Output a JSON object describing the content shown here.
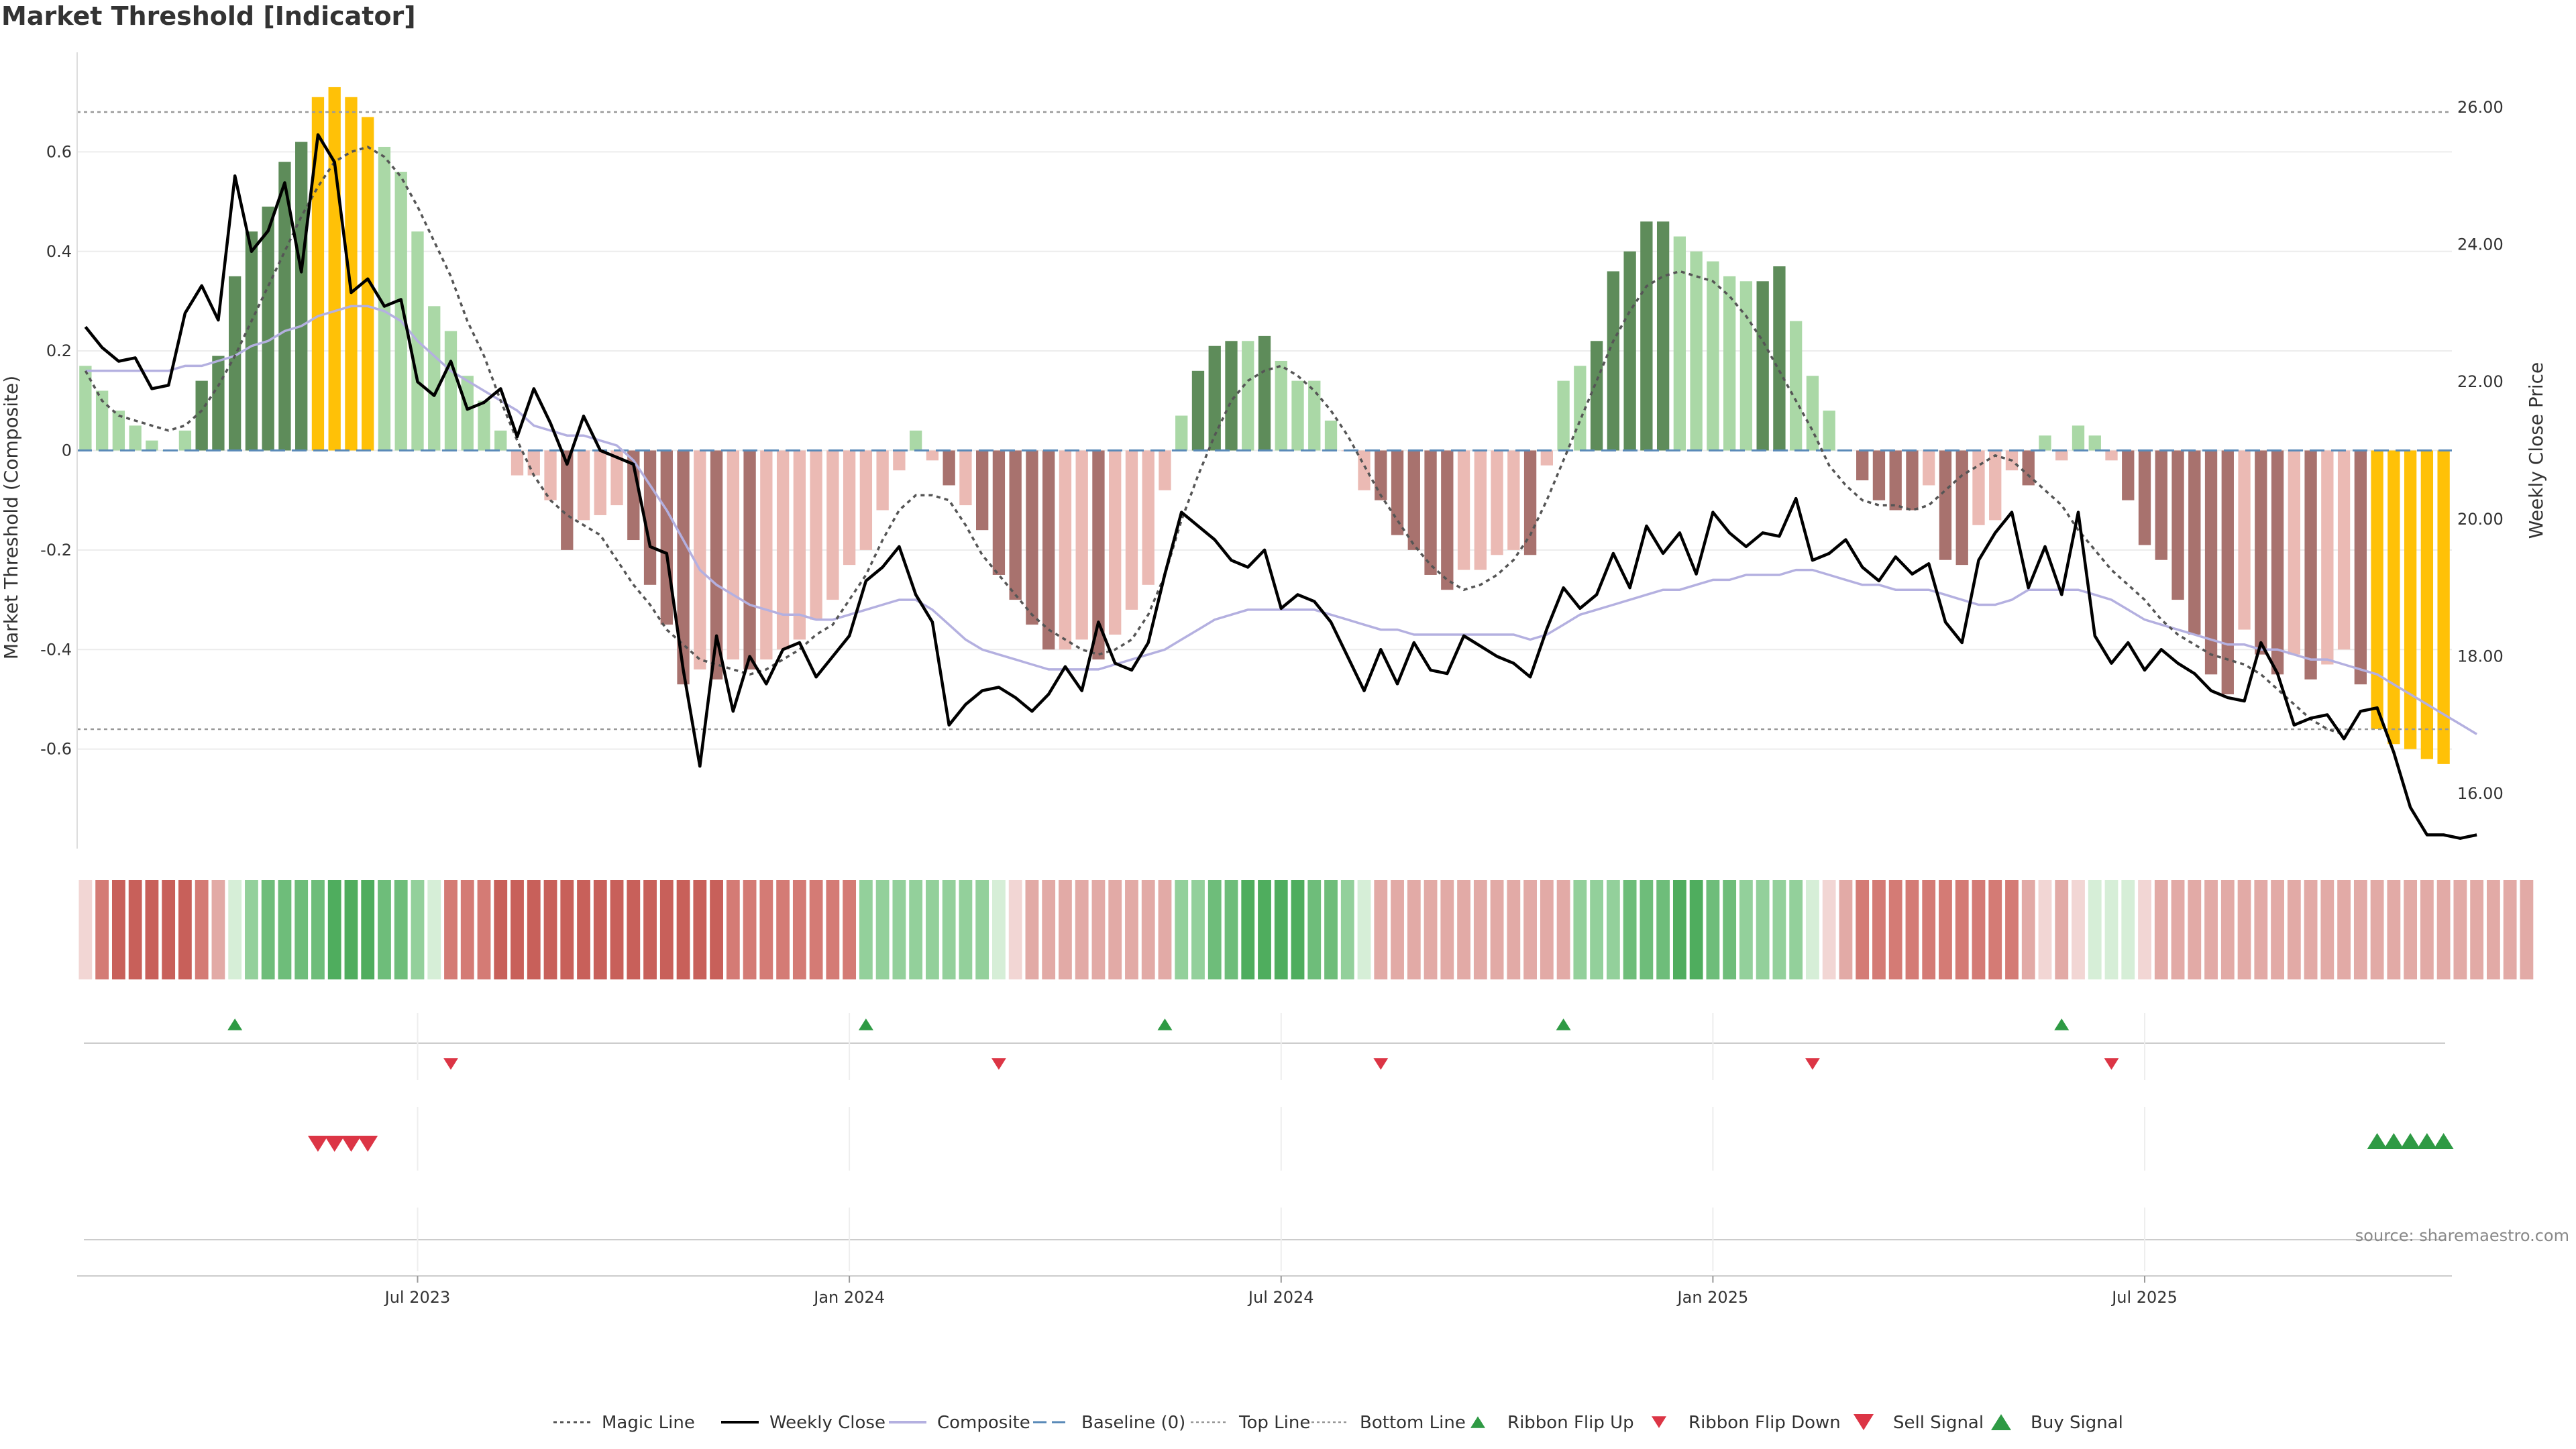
{
  "page": {
    "title": "Market Threshold [Indicator]"
  },
  "colors": {
    "strong_pos": "#5e8c5a",
    "weak_pos": "#aad8a6",
    "strong_neg": "#a8726e",
    "weak_neg": "#ebbab4",
    "extreme": "#ffc107",
    "close": "#000000",
    "composite": "#b4b0e0",
    "magic": "#555555",
    "baseline": "#5a8ab8",
    "ref": "#999999",
    "buy": "#2e9a44",
    "sell": "#dc3545"
  },
  "chart_data": {
    "type": "bar",
    "title": "Market Threshold [Indicator]",
    "ylabel_left": "Market Threshold (Composite)",
    "ylabel_right": "Weekly Close Price",
    "ylim_left": [
      -0.8,
      0.8
    ],
    "ylim_right": [
      15.2,
      26.8
    ],
    "left_ticks": [
      "-0.6",
      "-0.4",
      "-0.2",
      "0",
      "0.2",
      "0.4",
      "0.6"
    ],
    "right_ticks": [
      "16.00",
      "18.00",
      "20.00",
      "22.00",
      "24.00",
      "26.00"
    ],
    "x_ticks": [
      {
        "label": "Jul 2023",
        "week": 20
      },
      {
        "label": "Jan 2024",
        "week": 46
      },
      {
        "label": "Jul 2024",
        "week": 72
      },
      {
        "label": "Jan 2025",
        "week": 98
      },
      {
        "label": "Jul 2025",
        "week": 124
      }
    ],
    "top_line": 0.68,
    "bottom_line": -0.56,
    "composite_bars": [
      0.17,
      0.12,
      0.08,
      0.05,
      0.02,
      0,
      0.04,
      0.14,
      0.19,
      0.35,
      0.44,
      0.49,
      0.58,
      0.62,
      0.71,
      0.73,
      0.71,
      0.67,
      0.61,
      0.56,
      0.44,
      0.29,
      0.24,
      0.15,
      0.1,
      0.04,
      -0.05,
      -0.05,
      -0.1,
      -0.2,
      -0.14,
      -0.13,
      -0.11,
      -0.18,
      -0.27,
      -0.35,
      -0.47,
      -0.44,
      -0.46,
      -0.42,
      -0.44,
      -0.42,
      -0.4,
      -0.38,
      -0.34,
      -0.3,
      -0.23,
      -0.2,
      -0.12,
      -0.04,
      0.04,
      -0.02,
      -0.07,
      -0.11,
      -0.16,
      -0.25,
      -0.3,
      -0.35,
      -0.4,
      -0.4,
      -0.38,
      -0.42,
      -0.37,
      -0.32,
      -0.27,
      -0.08,
      0.07,
      0.16,
      0.21,
      0.22,
      0.22,
      0.23,
      0.18,
      0.14,
      0.14,
      0.06,
      0,
      -0.08,
      -0.1,
      -0.17,
      -0.2,
      -0.25,
      -0.28,
      -0.24,
      -0.24,
      -0.21,
      -0.2,
      -0.21,
      -0.03,
      0.14,
      0.17,
      0.22,
      0.36,
      0.4,
      0.46,
      0.46,
      0.43,
      0.4,
      0.38,
      0.35,
      0.34,
      0.34,
      0.37,
      0.26,
      0.15,
      0.08,
      0,
      -0.06,
      -0.1,
      -0.12,
      -0.12,
      -0.07,
      -0.22,
      -0.23,
      -0.15,
      -0.14,
      -0.04,
      -0.07,
      0.03,
      -0.02,
      0.05,
      0.03,
      -0.02,
      -0.1,
      -0.19,
      -0.22,
      -0.3,
      -0.37,
      -0.45,
      -0.49,
      -0.36,
      -0.41,
      -0.45,
      -0.41,
      -0.46,
      -0.43,
      -0.4,
      -0.47,
      -0.56,
      -0.59,
      -0.6,
      -0.62,
      -0.63
    ],
    "bar_regime": [
      "wp",
      "wp",
      "wp",
      "wp",
      "wp",
      "wp",
      "wp",
      "sp",
      "sp",
      "sp",
      "sp",
      "sp",
      "sp",
      "sp",
      "ex",
      "ex",
      "ex",
      "ex",
      "wp",
      "wp",
      "wp",
      "wp",
      "wp",
      "wp",
      "wp",
      "wp",
      "wn",
      "wn",
      "wn",
      "sn",
      "wn",
      "wn",
      "wn",
      "sn",
      "sn",
      "sn",
      "sn",
      "wn",
      "sn",
      "wn",
      "sn",
      "wn",
      "wn",
      "wn",
      "wn",
      "wn",
      "wn",
      "wn",
      "wn",
      "wn",
      "wp",
      "wn",
      "sn",
      "wn",
      "sn",
      "sn",
      "sn",
      "sn",
      "sn",
      "wn",
      "wn",
      "sn",
      "wn",
      "wn",
      "wn",
      "wn",
      "wp",
      "sp",
      "sp",
      "sp",
      "wp",
      "sp",
      "wp",
      "wp",
      "wp",
      "wp",
      "wn",
      "wn",
      "sn",
      "sn",
      "sn",
      "sn",
      "sn",
      "wn",
      "wn",
      "wn",
      "wn",
      "sn",
      "wn",
      "wp",
      "wp",
      "sp",
      "sp",
      "sp",
      "sp",
      "sp",
      "wp",
      "wp",
      "wp",
      "wp",
      "wp",
      "sp",
      "sp",
      "wp",
      "wp",
      "wp",
      "wn",
      "sn",
      "sn",
      "sn",
      "sn",
      "wn",
      "sn",
      "sn",
      "wn",
      "wn",
      "wn",
      "sn",
      "wp",
      "wn",
      "wp",
      "wp",
      "wn",
      "sn",
      "sn",
      "sn",
      "sn",
      "sn",
      "sn",
      "sn",
      "wn",
      "sn",
      "sn",
      "wn",
      "sn",
      "wn",
      "wn",
      "sn",
      "ex",
      "ex",
      "ex",
      "ex",
      "ex"
    ],
    "magic_line": [
      0.16,
      0.1,
      0.07,
      0.06,
      0.05,
      0.04,
      0.05,
      0.08,
      0.13,
      0.19,
      0.26,
      0.33,
      0.4,
      0.47,
      0.53,
      0.58,
      0.6,
      0.61,
      0.59,
      0.55,
      0.49,
      0.42,
      0.35,
      0.26,
      0.19,
      0.1,
      0.02,
      -0.05,
      -0.1,
      -0.13,
      -0.15,
      -0.17,
      -0.22,
      -0.27,
      -0.31,
      -0.36,
      -0.39,
      -0.42,
      -0.43,
      -0.44,
      -0.45,
      -0.44,
      -0.42,
      -0.4,
      -0.37,
      -0.35,
      -0.3,
      -0.25,
      -0.18,
      -0.12,
      -0.09,
      -0.09,
      -0.1,
      -0.15,
      -0.21,
      -0.25,
      -0.29,
      -0.33,
      -0.36,
      -0.38,
      -0.4,
      -0.41,
      -0.4,
      -0.38,
      -0.33,
      -0.25,
      -0.14,
      -0.05,
      0.03,
      0.1,
      0.14,
      0.16,
      0.17,
      0.15,
      0.12,
      0.08,
      0.03,
      -0.03,
      -0.09,
      -0.14,
      -0.19,
      -0.23,
      -0.26,
      -0.28,
      -0.27,
      -0.25,
      -0.22,
      -0.17,
      -0.1,
      -0.02,
      0.06,
      0.14,
      0.22,
      0.28,
      0.33,
      0.35,
      0.36,
      0.35,
      0.34,
      0.31,
      0.27,
      0.22,
      0.16,
      0.1,
      0.04,
      -0.03,
      -0.07,
      -0.1,
      -0.11,
      -0.11,
      -0.12,
      -0.11,
      -0.08,
      -0.05,
      -0.03,
      -0.01,
      -0.02,
      -0.05,
      -0.08,
      -0.11,
      -0.16,
      -0.2,
      -0.24,
      -0.27,
      -0.3,
      -0.34,
      -0.37,
      -0.39,
      -0.41,
      -0.42,
      -0.43,
      -0.45,
      -0.48,
      -0.51,
      -0.54,
      -0.56,
      -0.57
    ],
    "weekly_close": [
      22.8,
      22.5,
      22.3,
      22.35,
      21.9,
      21.95,
      23.0,
      23.4,
      22.9,
      25.0,
      23.9,
      24.2,
      24.9,
      23.6,
      25.6,
      25.2,
      23.3,
      23.5,
      23.1,
      23.2,
      22.0,
      21.8,
      22.3,
      21.6,
      21.7,
      21.9,
      21.2,
      21.9,
      21.4,
      20.8,
      21.5,
      21.0,
      20.9,
      20.8,
      19.6,
      19.5,
      17.8,
      16.4,
      18.3,
      17.2,
      18.0,
      17.6,
      18.1,
      18.2,
      17.7,
      18.0,
      18.3,
      19.1,
      19.3,
      19.6,
      18.9,
      18.5,
      17.0,
      17.3,
      17.5,
      17.55,
      17.4,
      17.2,
      17.45,
      17.85,
      17.5,
      18.5,
      17.9,
      17.8,
      18.2,
      19.2,
      20.1,
      19.9,
      19.7,
      19.4,
      19.3,
      19.55,
      18.7,
      18.9,
      18.8,
      18.5,
      18.0,
      17.5,
      18.1,
      17.6,
      18.2,
      17.8,
      17.75,
      18.3,
      18.15,
      18.0,
      17.9,
      17.7,
      18.4,
      19.0,
      18.7,
      18.9,
      19.5,
      19.0,
      19.9,
      19.5,
      19.8,
      19.2,
      20.1,
      19.8,
      19.6,
      19.8,
      19.75,
      20.3,
      19.4,
      19.5,
      19.7,
      19.3,
      19.1,
      19.45,
      19.2,
      19.35,
      18.5,
      18.2,
      19.4,
      19.8,
      20.1,
      19.0,
      19.6,
      18.9,
      20.1,
      18.3,
      17.9,
      18.2,
      17.8,
      18.1,
      17.9,
      17.75,
      17.5,
      17.4,
      17.35,
      18.2,
      17.75,
      17.0,
      17.1,
      17.15,
      16.8,
      17.2,
      17.25,
      16.6,
      15.8,
      15.4,
      15.4,
      15.35,
      15.4
    ],
    "composite_line": [
      0.16,
      0.16,
      0.16,
      0.16,
      0.16,
      0.16,
      0.17,
      0.17,
      0.18,
      0.19,
      0.21,
      0.22,
      0.24,
      0.25,
      0.27,
      0.28,
      0.29,
      0.29,
      0.28,
      0.26,
      0.22,
      0.19,
      0.16,
      0.14,
      0.12,
      0.1,
      0.08,
      0.05,
      0.04,
      0.03,
      0.03,
      0.02,
      0.01,
      -0.02,
      -0.07,
      -0.12,
      -0.18,
      -0.24,
      -0.27,
      -0.29,
      -0.31,
      -0.32,
      -0.33,
      -0.33,
      -0.34,
      -0.34,
      -0.33,
      -0.32,
      -0.31,
      -0.3,
      -0.3,
      -0.32,
      -0.35,
      -0.38,
      -0.4,
      -0.41,
      -0.42,
      -0.43,
      -0.44,
      -0.44,
      -0.44,
      -0.44,
      -0.43,
      -0.42,
      -0.41,
      -0.4,
      -0.38,
      -0.36,
      -0.34,
      -0.33,
      -0.32,
      -0.32,
      -0.32,
      -0.32,
      -0.32,
      -0.33,
      -0.34,
      -0.35,
      -0.36,
      -0.36,
      -0.37,
      -0.37,
      -0.37,
      -0.37,
      -0.37,
      -0.37,
      -0.37,
      -0.38,
      -0.37,
      -0.35,
      -0.33,
      -0.32,
      -0.31,
      -0.3,
      -0.29,
      -0.28,
      -0.28,
      -0.27,
      -0.26,
      -0.26,
      -0.25,
      -0.25,
      -0.25,
      -0.24,
      -0.24,
      -0.25,
      -0.26,
      -0.27,
      -0.27,
      -0.28,
      -0.28,
      -0.28,
      -0.29,
      -0.3,
      -0.31,
      -0.31,
      -0.3,
      -0.28,
      -0.28,
      -0.28,
      -0.28,
      -0.29,
      -0.3,
      -0.32,
      -0.34,
      -0.35,
      -0.36,
      -0.37,
      -0.38,
      -0.39,
      -0.39,
      -0.4,
      -0.4,
      -0.41,
      -0.42,
      -0.42,
      -0.43,
      -0.44,
      -0.45,
      -0.47,
      -0.49,
      -0.51,
      -0.53,
      -0.55,
      -0.57
    ],
    "ribbon": [
      -1,
      -3,
      -4,
      -4,
      -4,
      -4,
      -4,
      -3,
      -2,
      1,
      2,
      3,
      3,
      3,
      3,
      4,
      4,
      4,
      3,
      3,
      2,
      1,
      -3,
      -3,
      -3,
      -4,
      -4,
      -4,
      -4,
      -4,
      -4,
      -4,
      -4,
      -4,
      -4,
      -4,
      -4,
      -4,
      -4,
      -3,
      -3,
      -3,
      -3,
      -3,
      -3,
      -3,
      -3,
      2,
      2,
      2,
      2,
      2,
      2,
      2,
      2,
      1,
      -1,
      -2,
      -2,
      -2,
      -2,
      -2,
      -2,
      -2,
      -2,
      -2,
      2,
      2,
      3,
      3,
      4,
      4,
      4,
      4,
      3,
      3,
      2,
      1,
      -2,
      -2,
      -2,
      -2,
      -2,
      -2,
      -2,
      -2,
      -2,
      -2,
      -2,
      -2,
      2,
      2,
      2,
      3,
      3,
      3,
      4,
      4,
      3,
      3,
      2,
      2,
      2,
      2,
      1,
      -1,
      -2,
      -3,
      -3,
      -3,
      -3,
      -3,
      -3,
      -3,
      -3,
      -3,
      -3,
      -2,
      -1,
      -2,
      -1,
      1,
      1,
      1,
      -1,
      -2,
      -2,
      -2,
      -2,
      -2,
      -2,
      -2,
      -2,
      -2,
      -2,
      -2,
      -2,
      -2,
      -2,
      -2,
      -2,
      -2,
      -2,
      -2,
      -2,
      -2,
      -2,
      -2
    ],
    "ribbon_flip_up_weeks": [
      9,
      47,
      65,
      89,
      119
    ],
    "ribbon_flip_down_weeks": [
      22,
      55,
      78,
      104,
      122
    ],
    "sell_signal_weeks": [
      14,
      15,
      16,
      17
    ],
    "buy_signal_weeks": [
      138,
      139,
      140,
      141,
      142
    ],
    "legend": [
      "Magic Line",
      "Weekly Close",
      "Composite",
      "Baseline (0)",
      "Top Line",
      "Bottom Line",
      "Ribbon Flip Up",
      "Ribbon Flip Down",
      "Sell Signal",
      "Buy Signal"
    ],
    "source": "source: sharemaestro.com"
  }
}
